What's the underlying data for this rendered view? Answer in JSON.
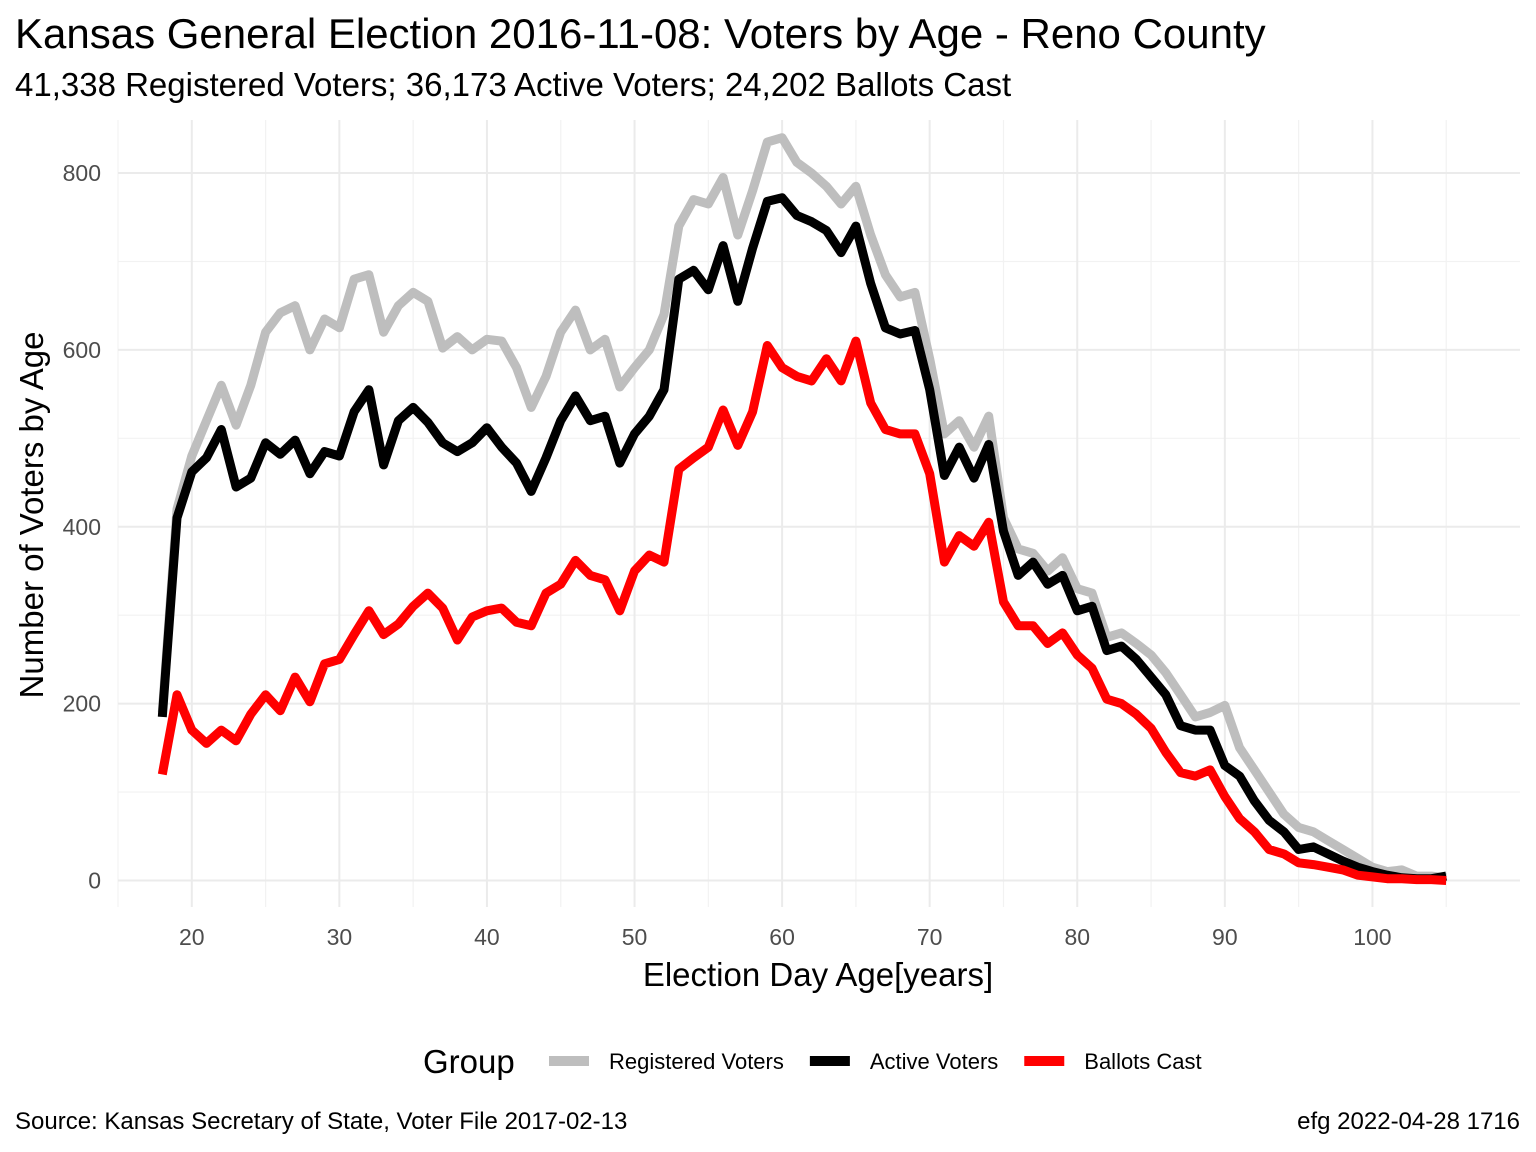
{
  "chart_data": {
    "type": "line",
    "title": "Kansas General Election 2016-11-08:  Voters by Age - Reno County",
    "subtitle": "41,338 Registered Voters; 36,173 Active Voters; 24,202 Ballots Cast",
    "xlabel": "Election Day Age[years]",
    "ylabel": "Number of Voters by Age",
    "xlim": [
      15,
      110
    ],
    "ylim": [
      -30,
      860
    ],
    "x_ticks": [
      20,
      30,
      40,
      50,
      60,
      70,
      80,
      90,
      100
    ],
    "y_ticks": [
      0,
      200,
      400,
      600,
      800
    ],
    "grid": true,
    "legend": {
      "title": "Group",
      "position": "bottom"
    },
    "caption_left": "Source:  Kansas Secretary of State, Voter File  2017-02-13",
    "caption_right": "efg 2022-04-28 1716",
    "x": [
      18,
      19,
      20,
      21,
      22,
      23,
      24,
      25,
      26,
      27,
      28,
      29,
      30,
      31,
      32,
      33,
      34,
      35,
      36,
      37,
      38,
      39,
      40,
      41,
      42,
      43,
      44,
      45,
      46,
      47,
      48,
      49,
      50,
      51,
      52,
      53,
      54,
      55,
      56,
      57,
      58,
      59,
      60,
      61,
      62,
      63,
      64,
      65,
      66,
      67,
      68,
      69,
      70,
      71,
      72,
      73,
      74,
      75,
      76,
      77,
      78,
      79,
      80,
      81,
      82,
      83,
      84,
      85,
      86,
      87,
      88,
      89,
      90,
      91,
      92,
      93,
      94,
      95,
      96,
      97,
      98,
      99,
      100,
      101,
      102,
      103,
      104,
      105
    ],
    "series": [
      {
        "name": "Registered Voters",
        "color": "#bebebe",
        "values": [
          190,
          420,
          480,
          520,
          560,
          515,
          560,
          620,
          642,
          650,
          600,
          635,
          625,
          680,
          685,
          620,
          650,
          665,
          655,
          602,
          615,
          600,
          612,
          610,
          580,
          535,
          570,
          620,
          645,
          600,
          612,
          558,
          580,
          600,
          640,
          740,
          770,
          765,
          795,
          730,
          780,
          835,
          840,
          812,
          800,
          785,
          765,
          785,
          730,
          685,
          660,
          665,
          590,
          505,
          520,
          490,
          525,
          410,
          375,
          370,
          350,
          365,
          330,
          325,
          275,
          280,
          268,
          255,
          235,
          210,
          185,
          190,
          198,
          150,
          125,
          100,
          75,
          60,
          55,
          45,
          35,
          25,
          15,
          10,
          12,
          5,
          5,
          3
        ]
      },
      {
        "name": "Active Voters",
        "color": "#000000",
        "values": [
          185,
          410,
          462,
          478,
          510,
          445,
          455,
          495,
          482,
          498,
          460,
          485,
          480,
          530,
          555,
          470,
          520,
          535,
          518,
          495,
          485,
          495,
          512,
          490,
          472,
          440,
          478,
          520,
          548,
          520,
          525,
          472,
          505,
          525,
          555,
          680,
          690,
          668,
          718,
          655,
          715,
          768,
          772,
          752,
          745,
          735,
          710,
          740,
          675,
          625,
          618,
          622,
          555,
          458,
          490,
          455,
          493,
          395,
          345,
          360,
          335,
          345,
          305,
          310,
          260,
          265,
          250,
          230,
          210,
          175,
          170,
          170,
          130,
          118,
          90,
          68,
          55,
          35,
          38,
          30,
          22,
          15,
          10,
          6,
          3,
          2,
          2,
          5
        ]
      },
      {
        "name": "Ballots Cast",
        "color": "#ff0000",
        "values": [
          120,
          210,
          170,
          155,
          170,
          158,
          188,
          210,
          192,
          230,
          202,
          245,
          250,
          278,
          305,
          278,
          290,
          310,
          325,
          308,
          272,
          298,
          305,
          308,
          292,
          288,
          325,
          335,
          362,
          345,
          340,
          305,
          350,
          368,
          360,
          465,
          478,
          490,
          532,
          492,
          530,
          605,
          580,
          570,
          565,
          590,
          565,
          610,
          540,
          510,
          505,
          505,
          460,
          360,
          390,
          378,
          405,
          315,
          288,
          288,
          268,
          280,
          255,
          240,
          205,
          200,
          188,
          172,
          145,
          122,
          118,
          125,
          95,
          70,
          55,
          35,
          30,
          20,
          18,
          15,
          12,
          6,
          4,
          2,
          2,
          1,
          1,
          0
        ]
      }
    ]
  }
}
